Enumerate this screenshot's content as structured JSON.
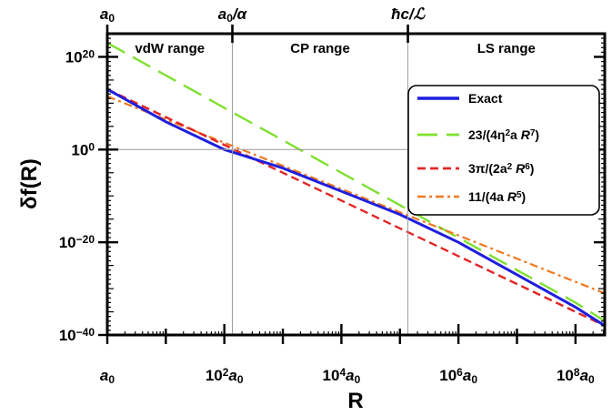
{
  "chart_data": {
    "type": "line",
    "xlabel": "R",
    "ylabel": "δf(R)",
    "x_scale": "log",
    "y_scale": "log",
    "xlim": [
      1,
      316000000.0
    ],
    "ylim": [
      1e-40,
      1e+25
    ],
    "grid": false,
    "legend_position": "top-right",
    "x_tick_labels": [
      {
        "pre": "a",
        "sub": "0",
        "post": "",
        "value": 1
      },
      {
        "pre": "10",
        "sup": "2",
        "post": "a",
        "sub": "0",
        "value": 100
      },
      {
        "pre": "10",
        "sup": "4",
        "post": "a",
        "sub": "0",
        "value": 10000
      },
      {
        "pre": "10",
        "sup": "6",
        "post": "a",
        "sub": "0",
        "value": 1000000
      },
      {
        "pre": "10",
        "sup": "8",
        "post": "a",
        "sub": "0",
        "value": 100000000
      }
    ],
    "y_tick_labels": [
      {
        "base": "10",
        "sup": "20",
        "value": 1e+20
      },
      {
        "base": "10",
        "sup": "0",
        "value": 1
      },
      {
        "base": "10",
        "sup": "−20",
        "value": 1e-20
      },
      {
        "base": "10",
        "sup": "−40",
        "value": 1e-40
      }
    ],
    "top_labels": [
      {
        "pre": "a",
        "sub": "0",
        "post": "",
        "value": 1
      },
      {
        "pre": "a",
        "sub": "0",
        "post": "/α",
        "value": 137
      },
      {
        "pre": "ħc/ℒ",
        "sub": "",
        "post": "",
        "value": 137000
      }
    ],
    "regions": [
      {
        "label": "vdW range",
        "x_from": 1,
        "x_to": 137
      },
      {
        "label": "CP range",
        "x_from": 137,
        "x_to": 137000
      },
      {
        "label": "LS range",
        "x_from": 137000,
        "x_to": 316000000.0
      }
    ],
    "reference_lines": {
      "y": 1,
      "x": [
        137,
        137000
      ]
    },
    "series": [
      {
        "name": "Exact",
        "color": "#1f1fdd",
        "style": "solid",
        "x": [
          1,
          10,
          100,
          1000,
          10000,
          100000,
          1000000,
          10000000,
          100000000,
          316000000
        ],
        "y": [
          10000000000000.0,
          1000000.0,
          1.0,
          0.0001,
          1e-09,
          1e-14,
          1e-20,
          1e-27,
          1e-34,
          1e-38
        ]
      },
      {
        "name": "23/(4η²a R⁷)",
        "color": "#7fe030",
        "style": "dashed",
        "x": [
          1,
          10,
          100,
          1000,
          10000,
          100000,
          1000000,
          10000000,
          100000000,
          316000000
        ],
        "y": [
          1e+23,
          1e+16,
          1000000000.0,
          100.0,
          1e-05,
          1e-12,
          1e-19,
          1e-26,
          1e-33,
          1e-37
        ]
      },
      {
        "name": "3π/(2a² R⁶)",
        "color": "#e32626",
        "style": "short-dashed",
        "x": [
          1,
          10,
          100,
          1000,
          10000,
          100000,
          1000000,
          10000000,
          100000000,
          316000000
        ],
        "y": [
          10000000000000.0,
          10000000.0,
          10.0,
          1e-05,
          1e-11,
          1e-17,
          1e-23,
          1e-29,
          1e-35,
          1e-38
        ]
      },
      {
        "name": "11/(4a R⁵)",
        "color": "#f07820",
        "style": "dash-dot",
        "x": [
          1,
          10,
          100,
          1000,
          10000,
          100000,
          1000000,
          10000000,
          100000000,
          316000000
        ],
        "y": [
          300000000000.0,
          3000000.0,
          30.0,
          0.0003,
          3e-09,
          3e-14,
          3e-19,
          3e-24,
          3e-29,
          1e-31
        ]
      }
    ]
  }
}
